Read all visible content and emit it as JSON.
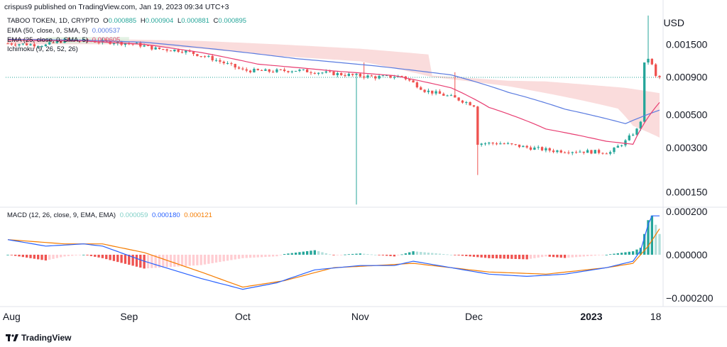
{
  "header": {
    "publisher": "crispus9 published on TradingView.com, Jan 19, 2023 09:34 UTC+3"
  },
  "symbol_line": {
    "name": "TABOO TOKEN, 1D, CRYPTO",
    "o_label": "O",
    "o_value": "0.000885",
    "h_label": "H",
    "h_value": "0.000904",
    "l_label": "L",
    "l_value": "0.000881",
    "c_label": "C",
    "c_value": "0.000895"
  },
  "indicators": {
    "ema50_label": "EMA (50, close, 0, SMA, 5)",
    "ema50_value": "0.000537",
    "ema25_label": "EMA (25, close, 0, SMA, 5)",
    "ema25_value": "0.000605",
    "ichimoku_label": "Ichimoku (9, 26, 52, 26)"
  },
  "macd": {
    "label": "MACD (12, 26, close, 9, EMA, EMA)",
    "hist_value": "0.000059",
    "macd_value": "0.000180",
    "signal_value": "0.000121"
  },
  "axis": {
    "currency": "USD"
  },
  "footer": {
    "brand": "TradingView"
  },
  "colors": {
    "up": "#26a69a",
    "down": "#ef5350",
    "ema50": "#5b7ce0",
    "ema25": "#e83e72",
    "cloud_red": "#f8d0d0",
    "cloud_green": "#d7ecd8",
    "macd": "#2962ff",
    "signal": "#f57c00",
    "hist_up": "#26a69a",
    "hist_up_light": "#b2dfdb",
    "hist_down": "#ef5350",
    "hist_down_light": "#ffcdd2"
  },
  "chart_data": {
    "type": "candlestick",
    "title": "TABOO TOKEN, 1D, CRYPTO",
    "price_scale": "log",
    "price_ticks": [
      "0.001500",
      "0.000900",
      "0.000500",
      "0.000300",
      "0.000150"
    ],
    "price_tick_values": [
      0.0015,
      0.0009,
      0.0005,
      0.0003,
      0.00015
    ],
    "current_price": 0.000895,
    "x_tick_labels": [
      "Aug",
      "Sep",
      "Oct",
      "Nov",
      "Dec",
      "2023",
      "18"
    ],
    "x_tick_dates": [
      "2022-08-01",
      "2022-09-01",
      "2022-10-01",
      "2022-11-01",
      "2022-12-01",
      "2023-01-01",
      "2023-01-18"
    ],
    "start_date": "2022-07-31",
    "end_date": "2023-01-19",
    "price_anchors": [
      [
        "2022-07-31",
        0.00152
      ],
      [
        "2022-08-05",
        0.0015
      ],
      [
        "2022-08-10",
        0.00148
      ],
      [
        "2022-08-15",
        0.0016
      ],
      [
        "2022-08-20",
        0.00158
      ],
      [
        "2022-08-28",
        0.00155
      ],
      [
        "2022-09-03",
        0.0015
      ],
      [
        "2022-09-08",
        0.0014
      ],
      [
        "2022-09-15",
        0.00136
      ],
      [
        "2022-09-22",
        0.00122
      ],
      [
        "2022-10-01",
        0.001
      ],
      [
        "2022-10-08",
        0.000985
      ],
      [
        "2022-10-15",
        0.001
      ],
      [
        "2022-10-22",
        0.000965
      ],
      [
        "2022-10-29",
        0.00093
      ],
      [
        "2022-11-05",
        0.0009
      ],
      [
        "2022-11-12",
        0.00091
      ],
      [
        "2022-11-18",
        0.00073
      ],
      [
        "2022-11-25",
        0.00066
      ],
      [
        "2022-12-01",
        0.00058
      ],
      [
        "2022-12-02",
        0.00032
      ],
      [
        "2022-12-08",
        0.00032
      ],
      [
        "2022-12-15",
        0.0003
      ],
      [
        "2022-12-22",
        0.000285
      ],
      [
        "2022-12-30",
        0.000282
      ],
      [
        "2023-01-06",
        0.000278
      ],
      [
        "2023-01-10",
        0.00033
      ],
      [
        "2023-01-13",
        0.000395
      ],
      [
        "2023-01-14",
        0.000455
      ],
      [
        "2023-01-15",
        0.0011
      ],
      [
        "2023-01-16",
        0.00121
      ],
      [
        "2023-01-17",
        0.00108
      ],
      [
        "2023-01-18",
        0.000905
      ],
      [
        "2023-01-19",
        0.000895
      ]
    ],
    "spikes": [
      {
        "date": "2022-10-31",
        "low": 0.000123
      },
      {
        "date": "2022-11-02",
        "high": 0.00113
      },
      {
        "date": "2022-11-26",
        "high": 0.00097
      },
      {
        "date": "2022-12-02",
        "low": 0.000195
      },
      {
        "date": "2023-01-16",
        "high": 0.00235
      }
    ],
    "ema50_anchors": [
      [
        "2022-07-31",
        0.00162
      ],
      [
        "2022-08-20",
        0.0016
      ],
      [
        "2022-09-05",
        0.00155
      ],
      [
        "2022-09-25",
        0.00138
      ],
      [
        "2022-10-15",
        0.0012
      ],
      [
        "2022-11-05",
        0.00107
      ],
      [
        "2022-11-25",
        0.00093
      ],
      [
        "2022-12-10",
        0.00071
      ],
      [
        "2022-12-25",
        0.000545
      ],
      [
        "2023-01-10",
        0.000435
      ],
      [
        "2023-01-19",
        0.000537
      ]
    ],
    "ema25_anchors": [
      [
        "2022-07-31",
        0.0016
      ],
      [
        "2022-08-20",
        0.00158
      ],
      [
        "2022-09-05",
        0.0015
      ],
      [
        "2022-09-20",
        0.00132
      ],
      [
        "2022-10-05",
        0.0011
      ],
      [
        "2022-10-25",
        0.00099
      ],
      [
        "2022-11-10",
        0.00092
      ],
      [
        "2022-11-25",
        0.00076
      ],
      [
        "2022-12-05",
        0.00056
      ],
      [
        "2022-12-20",
        0.0004
      ],
      [
        "2023-01-05",
        0.00033
      ],
      [
        "2023-01-12",
        0.000315
      ],
      [
        "2023-01-19",
        0.000605
      ]
    ],
    "cloud_top_anchors": [
      [
        "2022-07-31",
        0.00165
      ],
      [
        "2022-08-30",
        0.00162
      ],
      [
        "2022-09-20",
        0.00158
      ],
      [
        "2022-10-10",
        0.0015
      ],
      [
        "2022-11-01",
        0.0014
      ],
      [
        "2022-11-19",
        0.00128
      ],
      [
        "2022-11-20",
        0.00092
      ],
      [
        "2022-12-10",
        0.00085
      ],
      [
        "2022-12-20",
        0.00084
      ],
      [
        "2023-01-10",
        0.00076
      ],
      [
        "2023-01-19",
        0.0007
      ]
    ],
    "cloud_bottom_anchors": [
      [
        "2022-07-31",
        0.0015
      ],
      [
        "2022-08-30",
        0.0015
      ],
      [
        "2022-09-20",
        0.0014
      ],
      [
        "2022-10-10",
        0.00125
      ],
      [
        "2022-11-01",
        0.00115
      ],
      [
        "2022-11-20",
        0.0009
      ],
      [
        "2022-12-10",
        0.00078
      ],
      [
        "2022-12-20",
        0.0007
      ],
      [
        "2023-01-08",
        0.00055
      ],
      [
        "2023-01-12",
        0.00042
      ],
      [
        "2023-01-19",
        0.00035
      ]
    ],
    "macd_ticks": [
      "0.000200",
      "0.000000",
      "−0.000200"
    ],
    "macd_tick_values": [
      0.0002,
      0.0,
      -0.0002
    ],
    "macd_anchors": [
      [
        "2022-07-31",
        7e-05
      ],
      [
        "2022-08-10",
        4e-05
      ],
      [
        "2022-08-20",
        5e-05
      ],
      [
        "2022-08-25",
        4e-05
      ],
      [
        "2022-09-05",
        -3e-05
      ],
      [
        "2022-09-20",
        -0.00011
      ],
      [
        "2022-10-01",
        -0.00016
      ],
      [
        "2022-10-10",
        -0.00013
      ],
      [
        "2022-10-20",
        -7e-05
      ],
      [
        "2022-11-01",
        -5e-05
      ],
      [
        "2022-11-10",
        -5e-05
      ],
      [
        "2022-11-15",
        -3e-05
      ],
      [
        "2022-11-25",
        -6e-05
      ],
      [
        "2022-12-05",
        -9e-05
      ],
      [
        "2022-12-15",
        -0.0001
      ],
      [
        "2022-12-25",
        -9e-05
      ],
      [
        "2023-01-05",
        -6e-05
      ],
      [
        "2023-01-12",
        -3e-05
      ],
      [
        "2023-01-14",
        2e-05
      ],
      [
        "2023-01-16",
        0.00014
      ],
      [
        "2023-01-17",
        0.00018
      ],
      [
        "2023-01-19",
        0.00018
      ]
    ],
    "signal_anchors": [
      [
        "2022-07-31",
        7e-05
      ],
      [
        "2022-08-15",
        5e-05
      ],
      [
        "2022-08-25",
        5e-05
      ],
      [
        "2022-09-05",
        1e-05
      ],
      [
        "2022-09-20",
        -8e-05
      ],
      [
        "2022-10-01",
        -0.00015
      ],
      [
        "2022-10-12",
        -0.00012
      ],
      [
        "2022-10-25",
        -6e-05
      ],
      [
        "2022-11-05",
        -5e-05
      ],
      [
        "2022-11-15",
        -4e-05
      ],
      [
        "2022-11-25",
        -6e-05
      ],
      [
        "2022-12-05",
        -8e-05
      ],
      [
        "2022-12-20",
        -9e-05
      ],
      [
        "2023-01-05",
        -6e-05
      ],
      [
        "2023-01-12",
        -4e-05
      ],
      [
        "2023-01-16",
        4e-05
      ],
      [
        "2023-01-19",
        0.00012
      ]
    ]
  }
}
